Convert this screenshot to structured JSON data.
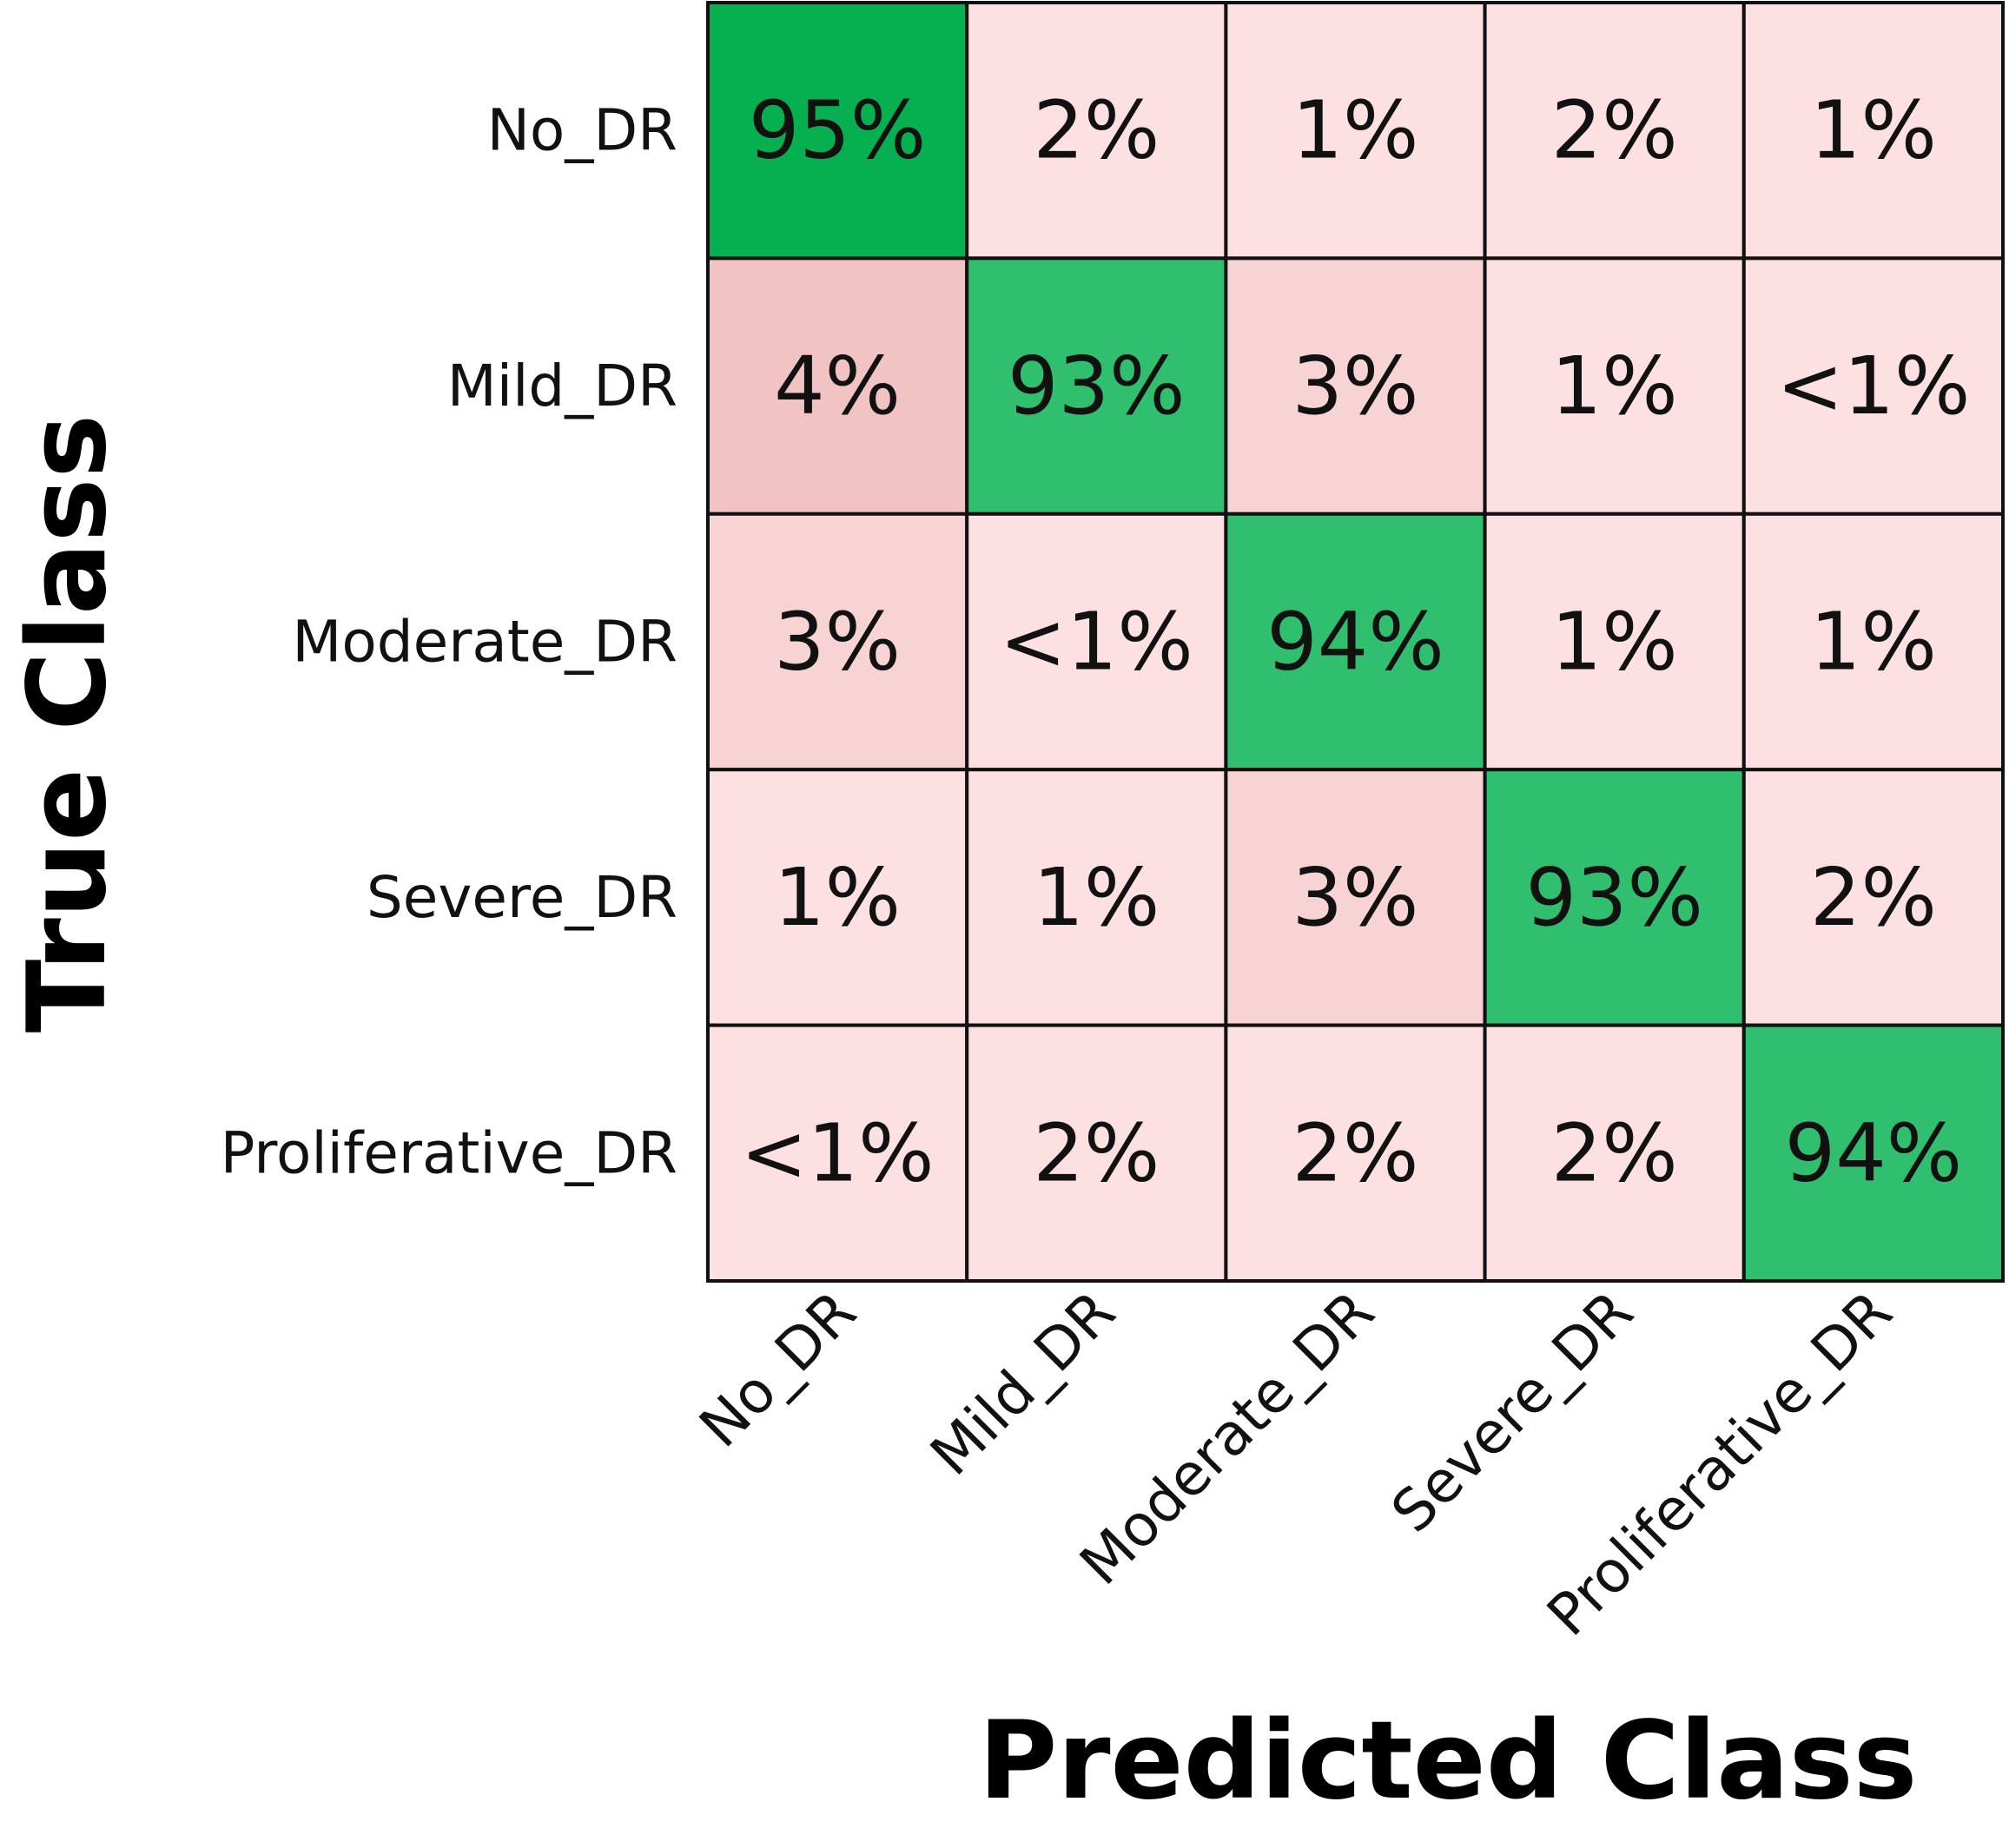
{
  "chart_data": {
    "type": "heatmap",
    "xlabel": "Predicted Class",
    "ylabel": "True Class",
    "x_categories": [
      "No_DR",
      "Mild_DR",
      "Moderate_DR",
      "Severe_DR",
      "Proliferative_DR"
    ],
    "y_categories": [
      "No_DR",
      "Mild_DR",
      "Moderate_DR",
      "Severe_DR",
      "Proliferative_DR"
    ],
    "values": [
      [
        95,
        2,
        1,
        2,
        1
      ],
      [
        4,
        93,
        3,
        1,
        0.5
      ],
      [
        3,
        0.5,
        94,
        1,
        1
      ],
      [
        1,
        1,
        3,
        93,
        2
      ],
      [
        0.5,
        2,
        2,
        2,
        94
      ]
    ],
    "labels": [
      [
        "95%",
        "2%",
        "1%",
        "2%",
        "1%"
      ],
      [
        "4%",
        "93%",
        "3%",
        "1%",
        "<1%"
      ],
      [
        "3%",
        "<1%",
        "94%",
        "1%",
        "1%"
      ],
      [
        "1%",
        "1%",
        "3%",
        "93%",
        "2%"
      ],
      [
        "<1%",
        "2%",
        "2%",
        "2%",
        "94%"
      ]
    ],
    "colors": {
      "diagonal_strong": "#06B050",
      "diagonal": "#2FBF6F",
      "low": "#FDE0E1",
      "mid": "#F8D3D3",
      "high": "#F2C3C3",
      "grid": "#111111"
    }
  }
}
